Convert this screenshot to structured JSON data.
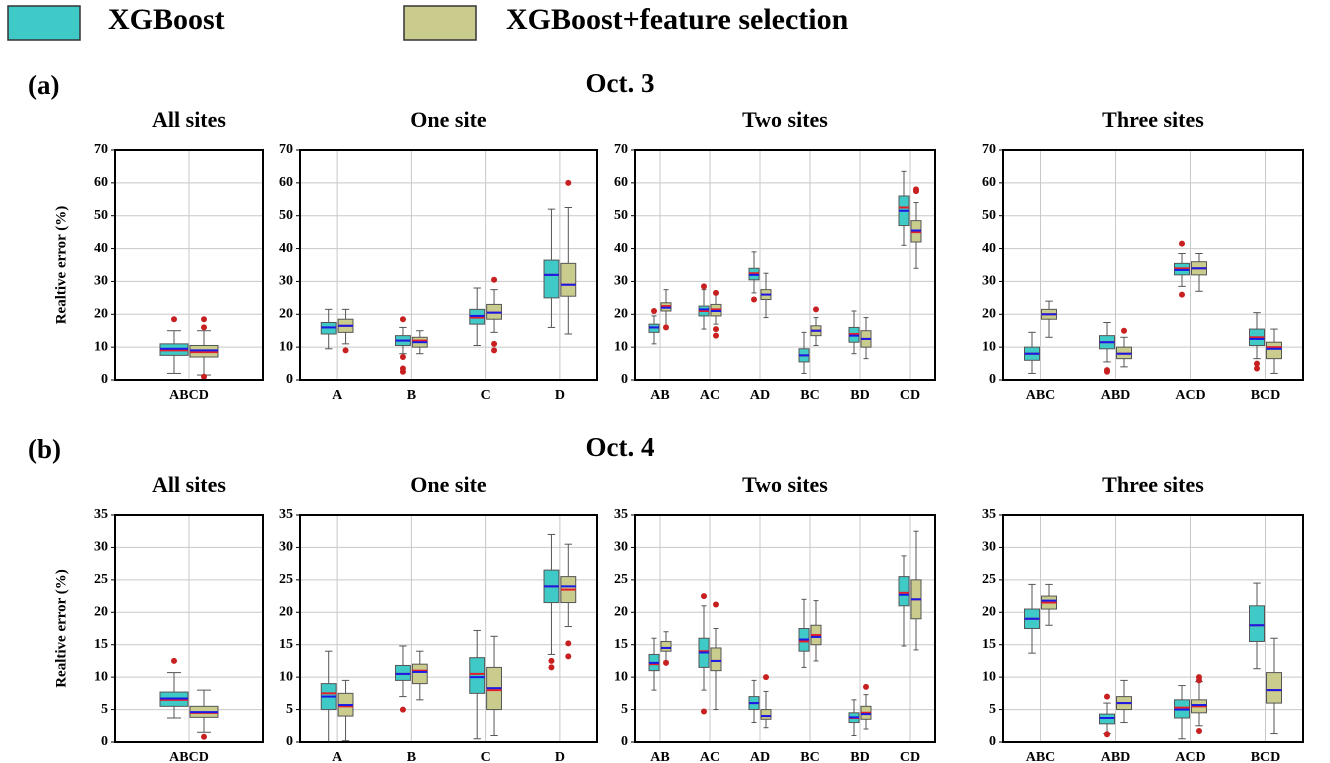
{
  "legend": {
    "entries": [
      {
        "name": "XGBoost",
        "color": "#3fcac8"
      },
      {
        "name": "XGBoost+feature selection",
        "color": "#cacc8e"
      }
    ]
  },
  "box_style": {
    "median_color": "#e3202a",
    "mean_color": "#1a1ae6",
    "flier_color": "#c82020"
  },
  "figure": {
    "rows": [
      {
        "label": "(a)",
        "title": "Oct. 3"
      },
      {
        "label": "(b)",
        "title": "Oct. 4"
      }
    ]
  },
  "chart_data": [
    {
      "type": "box",
      "title": "All sites",
      "ylabel": "Realtive error (%)",
      "categories": [
        "ABCD"
      ],
      "ylim": [
        0,
        70
      ],
      "yticks": [
        0,
        10,
        20,
        30,
        40,
        50,
        60,
        70
      ],
      "grid": true,
      "series": [
        {
          "values": [
            {
              "whislo": 2,
              "q1": 7.5,
              "med": 9,
              "q3": 11,
              "whishi": 15,
              "mean": 9.5,
              "fliers": [
                18.5
              ]
            }
          ]
        },
        {
          "values": [
            {
              "whislo": 1.5,
              "q1": 7,
              "med": 8.5,
              "q3": 10.5,
              "whishi": 15,
              "mean": 9,
              "fliers": [
                18.5,
                16,
                1
              ]
            }
          ]
        }
      ]
    },
    {
      "type": "box",
      "title": "One site",
      "categories": [
        "A",
        "B",
        "C",
        "D"
      ],
      "ylim": [
        0,
        70
      ],
      "yticks": [
        0,
        10,
        20,
        30,
        40,
        50,
        60,
        70
      ],
      "grid": true,
      "series": [
        {
          "values": [
            {
              "whislo": 9.5,
              "q1": 14,
              "med": 16,
              "q3": 17.5,
              "whishi": 21.5,
              "mean": 16,
              "fliers": []
            },
            {
              "whislo": 8,
              "q1": 10.5,
              "med": 12,
              "q3": 13.5,
              "whishi": 16,
              "mean": 12,
              "fliers": [
                18.5,
                7,
                3.5,
                2.5
              ]
            },
            {
              "whislo": 10.5,
              "q1": 17,
              "med": 19,
              "q3": 21.5,
              "whishi": 28,
              "mean": 19.5,
              "fliers": []
            },
            {
              "whislo": 16,
              "q1": 25,
              "med": 32,
              "q3": 36.5,
              "whishi": 52,
              "mean": 32,
              "fliers": []
            }
          ]
        },
        {
          "values": [
            {
              "whislo": 11,
              "q1": 14.5,
              "med": 16.5,
              "q3": 18.5,
              "whishi": 21.5,
              "mean": 16.5,
              "fliers": [
                9
              ]
            },
            {
              "whislo": 8,
              "q1": 10,
              "med": 12,
              "q3": 13,
              "whishi": 15,
              "mean": 11.5,
              "fliers": []
            },
            {
              "whislo": 14.5,
              "q1": 18.5,
              "med": 20.5,
              "q3": 23,
              "whishi": 27.5,
              "mean": 20.5,
              "fliers": [
                30.5,
                11,
                9
              ]
            },
            {
              "whislo": 14,
              "q1": 25.5,
              "med": 29,
              "q3": 35.5,
              "whishi": 52.5,
              "mean": 29,
              "fliers": [
                60
              ]
            }
          ]
        }
      ]
    },
    {
      "type": "box",
      "title": "Two sites",
      "categories": [
        "AB",
        "AC",
        "AD",
        "BC",
        "BD",
        "CD"
      ],
      "ylim": [
        0,
        70
      ],
      "yticks": [
        0,
        10,
        20,
        30,
        40,
        50,
        60,
        70
      ],
      "grid": true,
      "series": [
        {
          "values": [
            {
              "whislo": 11,
              "q1": 14.5,
              "med": 16,
              "q3": 17,
              "whishi": 19.5,
              "mean": 16,
              "fliers": [
                21
              ]
            },
            {
              "whislo": 15.5,
              "q1": 19.5,
              "med": 21,
              "q3": 22.5,
              "whishi": 27.5,
              "mean": 21.5,
              "fliers": [
                28.5
              ]
            },
            {
              "whislo": 26.5,
              "q1": 30.5,
              "med": 32.5,
              "q3": 34,
              "whishi": 39,
              "mean": 32,
              "fliers": [
                24.5
              ]
            },
            {
              "whislo": 2,
              "q1": 5.5,
              "med": 7.5,
              "q3": 9.5,
              "whishi": 14.5,
              "mean": 7.5,
              "fliers": []
            },
            {
              "whislo": 8,
              "q1": 11.5,
              "med": 14,
              "q3": 16,
              "whishi": 21,
              "mean": 13.5,
              "fliers": []
            },
            {
              "whislo": 41,
              "q1": 47,
              "med": 52.5,
              "q3": 56,
              "whishi": 63.5,
              "mean": 51.5,
              "fliers": []
            }
          ]
        },
        {
          "values": [
            {
              "whislo": 15.5,
              "q1": 21,
              "med": 22.5,
              "q3": 23.5,
              "whishi": 27.5,
              "mean": 22,
              "fliers": [
                16
              ]
            },
            {
              "whislo": 17,
              "q1": 19.5,
              "med": 21.5,
              "q3": 23,
              "whishi": 26,
              "mean": 21,
              "fliers": [
                26.5,
                15.5,
                13.5
              ]
            },
            {
              "whislo": 19,
              "q1": 24.5,
              "med": 26,
              "q3": 27.5,
              "whishi": 32.5,
              "mean": 26,
              "fliers": []
            },
            {
              "whislo": 10.5,
              "q1": 13.5,
              "med": 15,
              "q3": 16.5,
              "whishi": 19,
              "mean": 15,
              "fliers": [
                21.5
              ]
            },
            {
              "whislo": 6.5,
              "q1": 10,
              "med": 12.5,
              "q3": 15,
              "whishi": 19,
              "mean": 12.5,
              "fliers": []
            },
            {
              "whislo": 34,
              "q1": 42,
              "med": 45,
              "q3": 48.5,
              "whishi": 54,
              "mean": 45.5,
              "fliers": [
                58,
                57.5
              ]
            }
          ]
        }
      ]
    },
    {
      "type": "box",
      "title": "Three sites",
      "categories": [
        "ABC",
        "ABD",
        "ACD",
        "BCD"
      ],
      "ylim": [
        0,
        70
      ],
      "yticks": [
        0,
        10,
        20,
        30,
        40,
        50,
        60,
        70
      ],
      "grid": true,
      "series": [
        {
          "values": [
            {
              "whislo": 2,
              "q1": 6,
              "med": 8,
              "q3": 10,
              "whishi": 14.5,
              "mean": 8,
              "fliers": []
            },
            {
              "whislo": 5.5,
              "q1": 9.5,
              "med": 11.5,
              "q3": 13.5,
              "whishi": 17.5,
              "mean": 11.5,
              "fliers": [
                3,
                2.5
              ]
            },
            {
              "whislo": 28.5,
              "q1": 32,
              "med": 34,
              "q3": 35.5,
              "whishi": 38.5,
              "mean": 33.5,
              "fliers": [
                41.5,
                26
              ]
            },
            {
              "whislo": 6.5,
              "q1": 10.5,
              "med": 13,
              "q3": 15.5,
              "whishi": 20.5,
              "mean": 12.5,
              "fliers": [
                5,
                3.5
              ]
            }
          ]
        },
        {
          "values": [
            {
              "whislo": 13,
              "q1": 18.5,
              "med": 20,
              "q3": 21.5,
              "whishi": 24,
              "mean": 20,
              "fliers": []
            },
            {
              "whislo": 4,
              "q1": 6.5,
              "med": 8,
              "q3": 10,
              "whishi": 13,
              "mean": 8,
              "fliers": [
                15
              ]
            },
            {
              "whislo": 27,
              "q1": 32,
              "med": 34,
              "q3": 36,
              "whishi": 38.5,
              "mean": 34,
              "fliers": []
            },
            {
              "whislo": 2,
              "q1": 6.5,
              "med": 10,
              "q3": 11.5,
              "whishi": 15.5,
              "mean": 9.5,
              "fliers": []
            }
          ]
        }
      ]
    },
    {
      "type": "box",
      "title": "All sites",
      "ylabel": "Realtive error (%)",
      "categories": [
        "ABCD"
      ],
      "ylim": [
        0,
        35
      ],
      "yticks": [
        0,
        5,
        10,
        15,
        20,
        25,
        30,
        35
      ],
      "grid": true,
      "series": [
        {
          "values": [
            {
              "whislo": 3.7,
              "q1": 5.5,
              "med": 6.5,
              "q3": 7.7,
              "whishi": 10.7,
              "mean": 6.7,
              "fliers": [
                12.5
              ]
            }
          ]
        },
        {
          "values": [
            {
              "whislo": 1.5,
              "q1": 3.8,
              "med": 4.5,
              "q3": 5.5,
              "whishi": 8,
              "mean": 4.6,
              "fliers": [
                0.8
              ]
            }
          ]
        }
      ]
    },
    {
      "type": "box",
      "title": "One site",
      "categories": [
        "A",
        "B",
        "C",
        "D"
      ],
      "ylim": [
        0,
        35
      ],
      "yticks": [
        0,
        5,
        10,
        15,
        20,
        25,
        30,
        35
      ],
      "grid": true,
      "series": [
        {
          "values": [
            {
              "whislo": 0,
              "q1": 5,
              "med": 7.5,
              "q3": 9,
              "whishi": 14,
              "mean": 7,
              "fliers": []
            },
            {
              "whislo": 7,
              "q1": 9.5,
              "med": 10.5,
              "q3": 11.8,
              "whishi": 14.8,
              "mean": 10.5,
              "fliers": [
                5
              ]
            },
            {
              "whislo": 0.5,
              "q1": 7.5,
              "med": 10.5,
              "q3": 13,
              "whishi": 17.2,
              "mean": 10,
              "fliers": []
            },
            {
              "whislo": 13.5,
              "q1": 21.5,
              "med": 24,
              "q3": 26.5,
              "whishi": 32,
              "mean": 24,
              "fliers": [
                12.5,
                11.5
              ]
            }
          ]
        },
        {
          "values": [
            {
              "whislo": 0.2,
              "q1": 4,
              "med": 5.5,
              "q3": 7.5,
              "whishi": 9.5,
              "mean": 5.7,
              "fliers": []
            },
            {
              "whislo": 6.5,
              "q1": 9,
              "med": 11,
              "q3": 12,
              "whishi": 14,
              "mean": 10.8,
              "fliers": []
            },
            {
              "whislo": 1,
              "q1": 5,
              "med": 8,
              "q3": 11.5,
              "whishi": 16.3,
              "mean": 8.3,
              "fliers": []
            },
            {
              "whislo": 17.8,
              "q1": 21.5,
              "med": 23.5,
              "q3": 25.5,
              "whishi": 30.5,
              "mean": 24,
              "fliers": [
                15.2,
                13.2
              ]
            }
          ]
        }
      ]
    },
    {
      "type": "box",
      "title": "Two sites",
      "categories": [
        "AB",
        "AC",
        "AD",
        "BC",
        "BD",
        "CD"
      ],
      "ylim": [
        0,
        35
      ],
      "yticks": [
        0,
        5,
        10,
        15,
        20,
        25,
        30,
        35
      ],
      "grid": true,
      "series": [
        {
          "values": [
            {
              "whislo": 8,
              "q1": 11,
              "med": 12,
              "q3": 13.5,
              "whishi": 16,
              "mean": 12.2,
              "fliers": []
            },
            {
              "whislo": 8,
              "q1": 11.5,
              "med": 14,
              "q3": 16,
              "whishi": 21,
              "mean": 13.8,
              "fliers": [
                22.5,
                4.7
              ]
            },
            {
              "whislo": 3,
              "q1": 5,
              "med": 6,
              "q3": 7,
              "whishi": 9.5,
              "mean": 6,
              "fliers": []
            },
            {
              "whislo": 11.5,
              "q1": 14,
              "med": 15.5,
              "q3": 17.5,
              "whishi": 22,
              "mean": 15.8,
              "fliers": []
            },
            {
              "whislo": 1,
              "q1": 3,
              "med": 3.7,
              "q3": 4.5,
              "whishi": 6.5,
              "mean": 3.8,
              "fliers": []
            },
            {
              "whislo": 14.8,
              "q1": 21,
              "med": 23,
              "q3": 25.5,
              "whishi": 28.7,
              "mean": 22.7,
              "fliers": []
            }
          ]
        },
        {
          "values": [
            {
              "whislo": 12.5,
              "q1": 14,
              "med": 14.5,
              "q3": 15.5,
              "whishi": 17,
              "mean": 14.5,
              "fliers": [
                12.2
              ]
            },
            {
              "whislo": 5,
              "q1": 11,
              "med": 12.5,
              "q3": 14.5,
              "whishi": 17.5,
              "mean": 12.5,
              "fliers": [
                21.2
              ]
            },
            {
              "whislo": 2.2,
              "q1": 3.5,
              "med": 4,
              "q3": 5,
              "whishi": 7.8,
              "mean": 4,
              "fliers": [
                10
              ]
            },
            {
              "whislo": 12.5,
              "q1": 15,
              "med": 16.5,
              "q3": 18,
              "whishi": 21.8,
              "mean": 16.2,
              "fliers": []
            },
            {
              "whislo": 2,
              "q1": 3.5,
              "med": 4.5,
              "q3": 5.5,
              "whishi": 7.3,
              "mean": 4.3,
              "fliers": [
                8.5
              ]
            },
            {
              "whislo": 14.2,
              "q1": 19,
              "med": 22,
              "q3": 25,
              "whishi": 32.5,
              "mean": 22,
              "fliers": []
            }
          ]
        }
      ]
    },
    {
      "type": "box",
      "title": "Three sites",
      "categories": [
        "ABC",
        "ABD",
        "ACD",
        "BCD"
      ],
      "ylim": [
        0,
        35
      ],
      "yticks": [
        0,
        5,
        10,
        15,
        20,
        25,
        30,
        35
      ],
      "grid": true,
      "series": [
        {
          "values": [
            {
              "whislo": 13.7,
              "q1": 17.5,
              "med": 19,
              "q3": 20.5,
              "whishi": 24.3,
              "mean": 19,
              "fliers": []
            },
            {
              "whislo": 1.3,
              "q1": 2.8,
              "med": 3.7,
              "q3": 4.3,
              "whishi": 6,
              "mean": 3.7,
              "fliers": [
                7,
                1.2
              ]
            },
            {
              "whislo": 0.5,
              "q1": 3.7,
              "med": 5.3,
              "q3": 6.5,
              "whishi": 8.7,
              "mean": 5,
              "fliers": []
            },
            {
              "whislo": 11.3,
              "q1": 15.5,
              "med": 18,
              "q3": 21,
              "whishi": 24.5,
              "mean": 18,
              "fliers": []
            }
          ]
        },
        {
          "values": [
            {
              "whislo": 18,
              "q1": 20.5,
              "med": 21.5,
              "q3": 22.5,
              "whishi": 24.3,
              "mean": 21.8,
              "fliers": []
            },
            {
              "whislo": 3,
              "q1": 5,
              "med": 6,
              "q3": 7,
              "whishi": 9.5,
              "mean": 6,
              "fliers": []
            },
            {
              "whislo": 2.5,
              "q1": 4.5,
              "med": 5.5,
              "q3": 6.5,
              "whishi": 9.3,
              "mean": 5.7,
              "fliers": [
                10,
                9.5,
                1.7
              ]
            },
            {
              "whislo": 1.3,
              "q1": 6,
              "med": 8,
              "q3": 10.7,
              "whishi": 16,
              "mean": 8,
              "fliers": []
            }
          ]
        }
      ]
    }
  ]
}
